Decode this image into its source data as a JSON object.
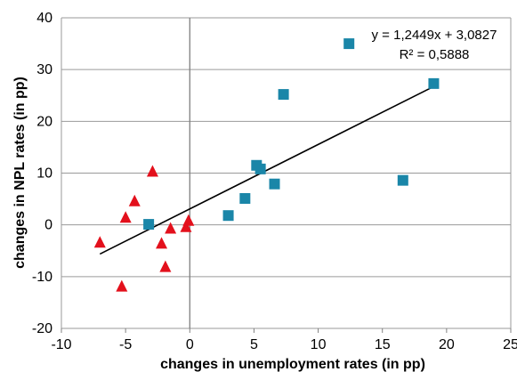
{
  "chart_data": {
    "type": "scatter",
    "xlabel": "changes in unemployment rates (in pp)",
    "ylabel": "changes in NPL rates (in pp)",
    "xlim": [
      -10,
      25
    ],
    "ylim": [
      -20,
      40
    ],
    "x_ticks": [
      "-10",
      "-5",
      "0",
      "5",
      "10",
      "15",
      "20",
      "25"
    ],
    "y_ticks": [
      "-20",
      "-10",
      "0",
      "10",
      "20",
      "30",
      "40"
    ],
    "grid": "horizontal",
    "series": [
      {
        "marker": "square",
        "color": "#1a86a8",
        "points": [
          [
            -3.2,
            0.1
          ],
          [
            3.0,
            1.8
          ],
          [
            4.3,
            5.1
          ],
          [
            5.2,
            11.5
          ],
          [
            5.5,
            10.8
          ],
          [
            6.6,
            7.9
          ],
          [
            7.3,
            25.2
          ],
          [
            12.4,
            35.0
          ],
          [
            16.6,
            8.6
          ],
          [
            19.0,
            27.3
          ]
        ]
      },
      {
        "marker": "triangle",
        "color": "#e3101c",
        "points": [
          [
            -7.0,
            -3.5
          ],
          [
            -5.3,
            -12.0
          ],
          [
            -5.0,
            1.3
          ],
          [
            -4.3,
            4.5
          ],
          [
            -2.9,
            10.2
          ],
          [
            -2.2,
            -3.7
          ],
          [
            -1.9,
            -8.2
          ],
          [
            -1.5,
            -0.8
          ],
          [
            -0.3,
            -0.5
          ],
          [
            -0.1,
            0.7
          ]
        ]
      }
    ],
    "trendline": {
      "x_range": [
        -7.0,
        19.0
      ],
      "color": "#000000",
      "equation": "y = 1,2449x + 3,0827",
      "r2": "R² = 0,5888"
    }
  }
}
